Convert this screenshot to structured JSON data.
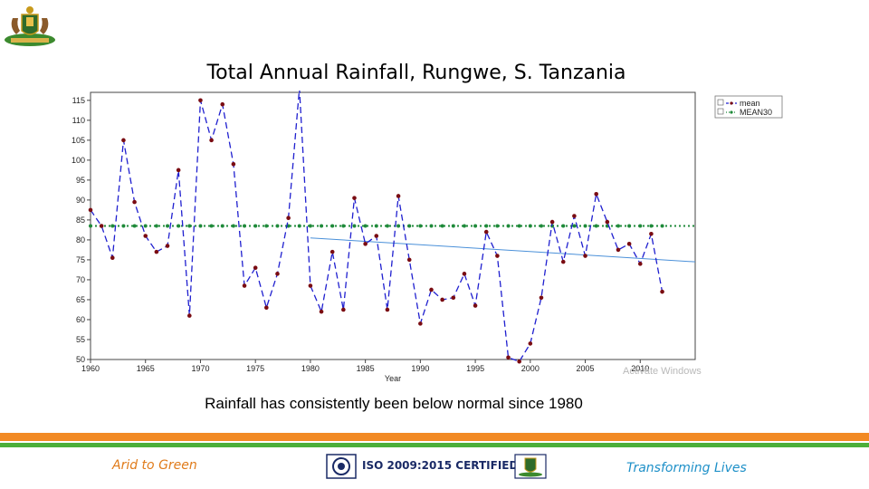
{
  "slide": {
    "title": "Total Annual Rainfall, Rungwe, S. Tanzania",
    "caption": "Rainfall has consistently been below normal since 1980",
    "footer_left": "Arid to Green",
    "footer_center": "ISO 2009:2015 CERTIFIED",
    "footer_right": "Transforming Lives",
    "watermark": "Activate Windows"
  },
  "colors": {
    "series_mean": "#1f1fcf",
    "marker": "#7a0c12",
    "mean30": "#1f8a3a",
    "trend": "#4a90d9",
    "orange_band": "#f28a24",
    "green_band": "#4caf3a"
  },
  "chart_data": {
    "type": "line",
    "title": "Total Annual Rainfall, Rungwe, S. Tanzania",
    "xlabel": "Year",
    "ylabel": "",
    "xlim": [
      1960,
      2015
    ],
    "ylim": [
      50,
      117
    ],
    "xticks": [
      1960,
      1965,
      1970,
      1975,
      1980,
      1985,
      1990,
      1995,
      2000,
      2005,
      2010
    ],
    "yticks": [
      50,
      55,
      60,
      65,
      70,
      75,
      80,
      85,
      90,
      95,
      100,
      105,
      110,
      115
    ],
    "legend": {
      "position": "top-right",
      "entries": [
        "mean",
        "MEAN30"
      ]
    },
    "series": [
      {
        "name": "mean",
        "style": "dashed-with-markers",
        "x": [
          1960,
          1961,
          1962,
          1963,
          1964,
          1965,
          1966,
          1967,
          1968,
          1969,
          1970,
          1971,
          1972,
          1973,
          1974,
          1975,
          1976,
          1977,
          1978,
          1979,
          1980,
          1981,
          1982,
          1983,
          1984,
          1985,
          1986,
          1987,
          1988,
          1989,
          1990,
          1991,
          1992,
          1993,
          1994,
          1995,
          1996,
          1997,
          1998,
          1999,
          2000,
          2001,
          2002,
          2003,
          2004,
          2005,
          2006,
          2007,
          2008,
          2009,
          2010,
          2011,
          2012
        ],
        "values": [
          87.5,
          83.5,
          75.5,
          105,
          89.5,
          81,
          77,
          78.5,
          97.5,
          61,
          115,
          105,
          114,
          99,
          68.5,
          73,
          63,
          71.5,
          85.5,
          118,
          68.5,
          62,
          77,
          62.5,
          90.5,
          79,
          81,
          62.5,
          91,
          75,
          59,
          67.5,
          65,
          65.5,
          71.5,
          63.5,
          82,
          76,
          50.5,
          49.5,
          54,
          65.5,
          84.5,
          74.5,
          86,
          76,
          91.5,
          84.5,
          77.5,
          79,
          74,
          81.5,
          67
        ]
      },
      {
        "name": "MEAN30",
        "style": "dotted-with-markers",
        "x": [
          1960,
          2015
        ],
        "values": [
          83.5,
          83.5
        ]
      },
      {
        "name": "trend",
        "style": "solid",
        "x": [
          1980,
          2015
        ],
        "values": [
          80.5,
          74.5
        ]
      }
    ]
  }
}
